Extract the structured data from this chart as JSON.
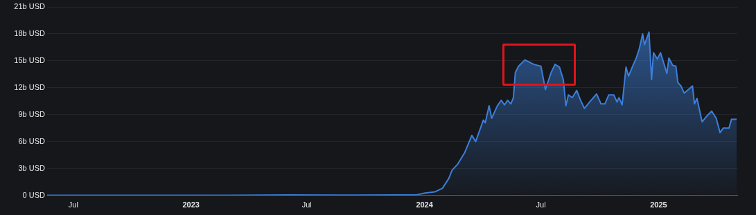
{
  "chart_data": {
    "type": "area",
    "x": [
      "2022-05-21",
      "2022-10-01",
      "2023-03-01",
      "2023-06-01",
      "2023-09-01",
      "2023-11-15",
      "2023-12-19",
      "2024-01-02",
      "2024-01-17",
      "2024-01-29",
      "2024-02-08",
      "2024-02-13",
      "2024-02-22",
      "2024-03-04",
      "2024-03-15",
      "2024-03-21",
      "2024-04-02",
      "2024-04-05",
      "2024-04-11",
      "2024-04-15",
      "2024-04-24",
      "2024-04-30",
      "2024-05-05",
      "2024-05-10",
      "2024-05-15",
      "2024-05-19",
      "2024-05-22",
      "2024-05-27",
      "2024-06-06",
      "2024-06-20",
      "2024-07-01",
      "2024-07-08",
      "2024-07-17",
      "2024-07-23",
      "2024-07-30",
      "2024-08-05",
      "2024-08-09",
      "2024-08-13",
      "2024-08-19",
      "2024-08-26",
      "2024-09-01",
      "2024-09-07",
      "2024-09-15",
      "2024-09-26",
      "2024-10-03",
      "2024-10-09",
      "2024-10-15",
      "2024-10-23",
      "2024-10-28",
      "2024-10-31",
      "2024-11-05",
      "2024-11-11",
      "2024-11-15",
      "2024-11-22",
      "2024-11-27",
      "2024-12-02",
      "2024-12-07",
      "2024-12-10",
      "2024-12-17",
      "2024-12-21",
      "2024-12-24",
      "2024-12-30",
      "2025-01-04",
      "2025-01-14",
      "2025-01-17",
      "2025-01-23",
      "2025-01-28",
      "2025-01-31",
      "2025-02-05",
      "2025-02-10",
      "2025-02-23",
      "2025-02-26",
      "2025-03-02",
      "2025-03-10",
      "2025-03-18",
      "2025-03-25",
      "2025-04-01",
      "2025-04-07",
      "2025-04-12",
      "2025-04-21",
      "2025-04-25",
      "2025-05-03"
    ],
    "series": [
      {
        "color": "#3b7fdb",
        "values": [
          0.02,
          0.02,
          0.03,
          0.06,
          0.05,
          0.06,
          0.07,
          0.28,
          0.4,
          0.8,
          1.9,
          2.8,
          3.5,
          4.8,
          6.7,
          6.0,
          8.4,
          8.1,
          10.0,
          8.6,
          10.0,
          10.6,
          10.1,
          10.6,
          10.2,
          10.9,
          13.7,
          14.4,
          15.1,
          14.6,
          14.4,
          11.8,
          13.7,
          14.6,
          14.3,
          12.9,
          10.0,
          11.2,
          10.9,
          11.7,
          10.6,
          9.7,
          10.4,
          11.3,
          10.2,
          10.2,
          11.2,
          11.2,
          10.4,
          10.9,
          10.1,
          14.3,
          13.3,
          14.5,
          15.3,
          16.4,
          18.0,
          16.8,
          18.2,
          12.9,
          15.9,
          15.2,
          15.9,
          13.6,
          15.3,
          14.5,
          14.4,
          12.6,
          12.2,
          11.4,
          12.2,
          10.2,
          10.8,
          8.2,
          8.9,
          9.4,
          8.6,
          7.0,
          7.5,
          7.5,
          8.5,
          8.5
        ]
      }
    ],
    "xlim": [
      "2022-05-21",
      "2025-05-04"
    ],
    "xticks": [
      {
        "value": "2022-07-01",
        "label": "Jul"
      },
      {
        "value": "2023-01-01",
        "label": "2023"
      },
      {
        "value": "2023-07-01",
        "label": "Jul"
      },
      {
        "value": "2024-01-01",
        "label": "2024"
      },
      {
        "value": "2024-07-01",
        "label": "Jul"
      },
      {
        "value": "2025-01-01",
        "label": "2025"
      }
    ],
    "ylim": [
      0,
      21
    ],
    "yticks": [
      {
        "value": 0,
        "label": "0 USD"
      },
      {
        "value": 3,
        "label": "3b USD"
      },
      {
        "value": 6,
        "label": "6b USD"
      },
      {
        "value": 9,
        "label": "9b USD"
      },
      {
        "value": 12,
        "label": "12b USD"
      },
      {
        "value": 15,
        "label": "15b USD"
      },
      {
        "value": 18,
        "label": "18b USD"
      },
      {
        "value": 21,
        "label": "21b USD"
      }
    ],
    "grid": "y",
    "legend": false,
    "marker": "none",
    "line_style": "solid"
  }
}
